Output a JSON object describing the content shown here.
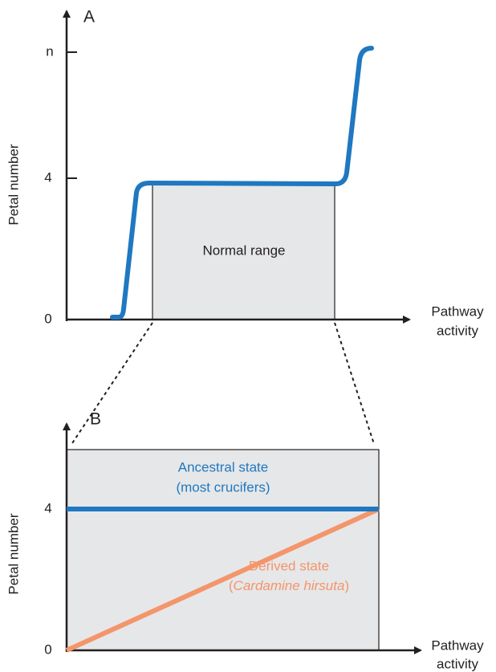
{
  "panel_a": {
    "label": "A",
    "y_axis_label": "Petal number",
    "y_tick_labels": [
      "0",
      "4",
      "n"
    ],
    "x_axis_label": [
      "Pathway",
      "activity"
    ],
    "box_label": "Normal range"
  },
  "panel_b": {
    "label": "B",
    "y_axis_label": "Petal number",
    "y_tick_labels": [
      "0",
      "4"
    ],
    "x_axis_label": [
      "Pathway",
      "activity"
    ],
    "ancestral_label": [
      "Ancestral state",
      "(most crucifers)"
    ],
    "derived_label": {
      "line1": "Derived state",
      "open": "(",
      "species": "Cardamine hirsuta",
      "close": ")"
    }
  }
}
